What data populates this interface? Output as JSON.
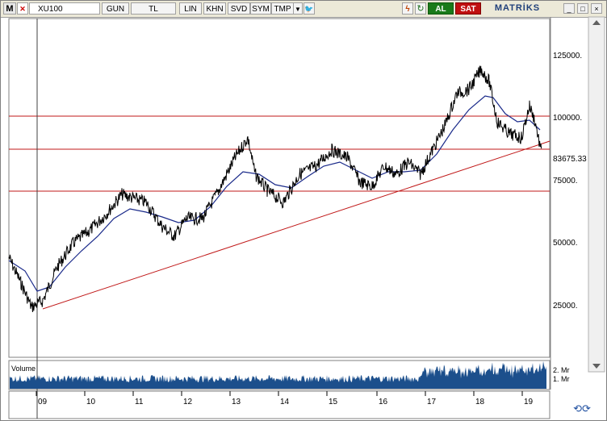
{
  "toolbar": {
    "menu": "M",
    "close": "✕",
    "symbol": "XU100",
    "period": "GUN",
    "currency": "TL",
    "scale": "LIN",
    "khn": "KHN",
    "svd": "SVD",
    "sym": "SYM",
    "tmp": "TMP",
    "dropdown": "▼",
    "twitter": "🐦",
    "note": "ϟ",
    "refresh": "↻",
    "buy": "AL",
    "sell": "SAT",
    "brand": "MATRİKS"
  },
  "window_buttons": {
    "minimize": "_",
    "maximize": "□",
    "close": "×"
  },
  "price_axis": {
    "ticks": [
      "125000.",
      "100000.",
      "75000.",
      "50000.",
      "25000."
    ],
    "current_label": "83675.33"
  },
  "volume": {
    "label": "Volume",
    "ticks": [
      "2. Mr",
      "1. Mr"
    ]
  },
  "time_axis": {
    "labels": [
      "09",
      "10",
      "11",
      "12",
      "13",
      "14",
      "15",
      "16",
      "17",
      "18",
      "19"
    ]
  },
  "colors": {
    "price_line": "#000000",
    "ma_line": "#1a2a8a",
    "resistance_line": "#c01818",
    "volume_fill": "#1c4f8c"
  },
  "nav": {
    "icon": "⟲⟳"
  }
}
